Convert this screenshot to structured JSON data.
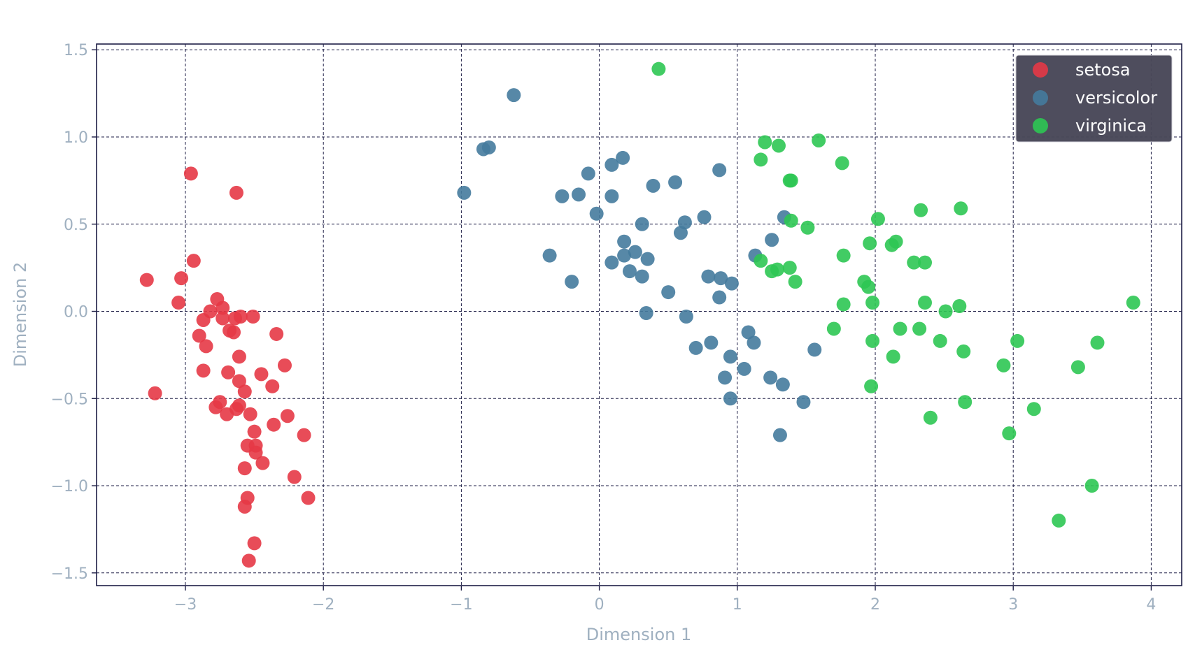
{
  "chart_data": {
    "type": "scatter",
    "title": "",
    "xlabel": "Dimension 1",
    "ylabel": "Dimension 2",
    "xlim": [
      -3.644,
      4.221
    ],
    "ylim": [
      -1.573,
      1.533
    ],
    "xticks": [
      -3,
      -2,
      -1,
      0,
      1,
      2,
      3,
      4
    ],
    "xtick_labels": [
      "−3",
      "−2",
      "−1",
      "0",
      "1",
      "2",
      "3",
      "4"
    ],
    "yticks": [
      1.5,
      1.0,
      0.5,
      0.0,
      -0.5,
      -1.0,
      -1.5
    ],
    "ytick_labels": [
      "1.5",
      "1.0",
      "0.5",
      "0.0",
      "−0.5",
      "−1.0",
      "−1.5"
    ],
    "grid": true,
    "legend_position": "top-right",
    "colors": {
      "axis": "#1e1e46",
      "tick_label": "#9fb0c0",
      "legend_bg": "#494858",
      "legend_text": "#ffffff"
    },
    "series": [
      {
        "name": "setosa",
        "color": "#e63946",
        "points": [
          [
            -2.96,
            0.79
          ],
          [
            -2.63,
            0.68
          ],
          [
            -2.94,
            0.29
          ],
          [
            -3.28,
            0.18
          ],
          [
            -3.03,
            0.19
          ],
          [
            -3.05,
            0.05
          ],
          [
            -2.77,
            0.07
          ],
          [
            -2.73,
            0.02
          ],
          [
            -2.82,
            0.0
          ],
          [
            -2.87,
            -0.05
          ],
          [
            -2.73,
            -0.04
          ],
          [
            -2.6,
            -0.03
          ],
          [
            -2.51,
            -0.03
          ],
          [
            -2.64,
            -0.04
          ],
          [
            -2.68,
            -0.11
          ],
          [
            -2.65,
            -0.12
          ],
          [
            -2.9,
            -0.14
          ],
          [
            -2.34,
            -0.13
          ],
          [
            -2.85,
            -0.2
          ],
          [
            -2.61,
            -0.26
          ],
          [
            -2.28,
            -0.31
          ],
          [
            -2.87,
            -0.34
          ],
          [
            -2.69,
            -0.35
          ],
          [
            -2.45,
            -0.36
          ],
          [
            -2.61,
            -0.4
          ],
          [
            -2.37,
            -0.43
          ],
          [
            -2.57,
            -0.46
          ],
          [
            -3.22,
            -0.47
          ],
          [
            -2.75,
            -0.52
          ],
          [
            -2.78,
            -0.55
          ],
          [
            -2.61,
            -0.54
          ],
          [
            -2.63,
            -0.56
          ],
          [
            -2.7,
            -0.59
          ],
          [
            -2.53,
            -0.59
          ],
          [
            -2.26,
            -0.6
          ],
          [
            -2.36,
            -0.65
          ],
          [
            -2.5,
            -0.69
          ],
          [
            -2.14,
            -0.71
          ],
          [
            -2.49,
            -0.77
          ],
          [
            -2.55,
            -0.77
          ],
          [
            -2.49,
            -0.81
          ],
          [
            -2.44,
            -0.87
          ],
          [
            -2.57,
            -0.9
          ],
          [
            -2.21,
            -0.95
          ],
          [
            -2.55,
            -1.07
          ],
          [
            -2.11,
            -1.07
          ],
          [
            -2.57,
            -1.12
          ],
          [
            -2.5,
            -1.33
          ],
          [
            -2.54,
            -1.43
          ]
        ]
      },
      {
        "name": "versicolor",
        "color": "#457b9d",
        "points": [
          [
            -0.62,
            1.24
          ],
          [
            -0.84,
            0.93
          ],
          [
            -0.8,
            0.94
          ],
          [
            -0.98,
            0.68
          ],
          [
            -0.27,
            0.66
          ],
          [
            -0.15,
            0.67
          ],
          [
            -0.08,
            0.79
          ],
          [
            0.09,
            0.84
          ],
          [
            0.17,
            0.88
          ],
          [
            0.09,
            0.66
          ],
          [
            -0.02,
            0.56
          ],
          [
            0.39,
            0.72
          ],
          [
            0.55,
            0.74
          ],
          [
            0.87,
            0.81
          ],
          [
            0.31,
            0.5
          ],
          [
            0.62,
            0.51
          ],
          [
            0.59,
            0.45
          ],
          [
            0.76,
            0.54
          ],
          [
            0.18,
            0.4
          ],
          [
            -0.36,
            0.32
          ],
          [
            0.18,
            0.32
          ],
          [
            0.26,
            0.34
          ],
          [
            0.35,
            0.3
          ],
          [
            0.09,
            0.28
          ],
          [
            0.22,
            0.23
          ],
          [
            0.31,
            0.2
          ],
          [
            -0.2,
            0.17
          ],
          [
            0.79,
            0.2
          ],
          [
            0.88,
            0.19
          ],
          [
            0.96,
            0.16
          ],
          [
            0.5,
            0.11
          ],
          [
            0.87,
            0.08
          ],
          [
            0.34,
            -0.01
          ],
          [
            0.63,
            -0.03
          ],
          [
            1.34,
            0.54
          ],
          [
            1.25,
            0.41
          ],
          [
            1.13,
            0.32
          ],
          [
            1.08,
            -0.12
          ],
          [
            1.12,
            -0.18
          ],
          [
            0.81,
            -0.18
          ],
          [
            0.7,
            -0.21
          ],
          [
            0.95,
            -0.26
          ],
          [
            1.56,
            -0.22
          ],
          [
            1.05,
            -0.33
          ],
          [
            0.91,
            -0.38
          ],
          [
            1.24,
            -0.38
          ],
          [
            1.33,
            -0.42
          ],
          [
            0.95,
            -0.5
          ],
          [
            1.48,
            -0.52
          ],
          [
            1.31,
            -0.71
          ]
        ]
      },
      {
        "name": "virginica",
        "color": "#2dc653",
        "points": [
          [
            0.43,
            1.39
          ],
          [
            1.2,
            0.97
          ],
          [
            1.3,
            0.95
          ],
          [
            1.59,
            0.98
          ],
          [
            1.17,
            0.87
          ],
          [
            1.76,
            0.85
          ],
          [
            1.38,
            0.75
          ],
          [
            1.39,
            0.75
          ],
          [
            2.33,
            0.58
          ],
          [
            2.62,
            0.59
          ],
          [
            2.02,
            0.53
          ],
          [
            1.39,
            0.52
          ],
          [
            1.51,
            0.48
          ],
          [
            1.77,
            0.32
          ],
          [
            1.96,
            0.39
          ],
          [
            2.12,
            0.38
          ],
          [
            2.15,
            0.4
          ],
          [
            2.28,
            0.28
          ],
          [
            2.36,
            0.28
          ],
          [
            1.17,
            0.29
          ],
          [
            1.25,
            0.23
          ],
          [
            1.29,
            0.24
          ],
          [
            1.38,
            0.25
          ],
          [
            1.42,
            0.17
          ],
          [
            1.92,
            0.17
          ],
          [
            1.95,
            0.14
          ],
          [
            1.77,
            0.04
          ],
          [
            1.98,
            0.05
          ],
          [
            2.36,
            0.05
          ],
          [
            2.51,
            0.0
          ],
          [
            2.61,
            0.03
          ],
          [
            3.87,
            0.05
          ],
          [
            1.7,
            -0.1
          ],
          [
            2.18,
            -0.1
          ],
          [
            2.32,
            -0.1
          ],
          [
            1.98,
            -0.17
          ],
          [
            2.47,
            -0.17
          ],
          [
            3.03,
            -0.17
          ],
          [
            3.61,
            -0.18
          ],
          [
            2.64,
            -0.23
          ],
          [
            2.13,
            -0.26
          ],
          [
            2.93,
            -0.31
          ],
          [
            3.47,
            -0.32
          ],
          [
            1.97,
            -0.43
          ],
          [
            2.65,
            -0.52
          ],
          [
            3.15,
            -0.56
          ],
          [
            2.4,
            -0.61
          ],
          [
            2.97,
            -0.7
          ],
          [
            3.57,
            -1.0
          ],
          [
            3.33,
            -1.2
          ]
        ]
      }
    ]
  }
}
